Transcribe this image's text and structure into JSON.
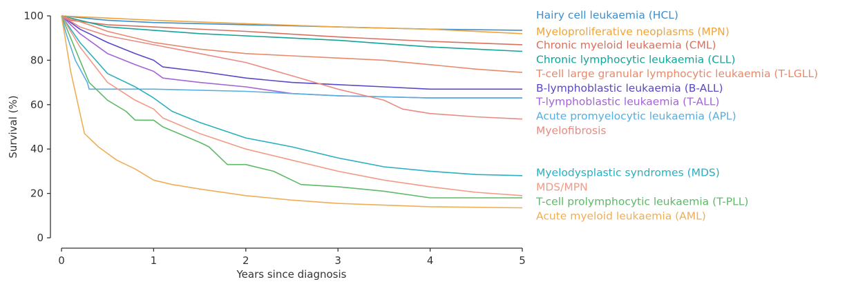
{
  "chart_data": {
    "type": "line",
    "xlabel": "Years since diagnosis",
    "ylabel": "Survival (%)",
    "xlim": [
      0,
      5
    ],
    "ylim": [
      0,
      100
    ],
    "x_ticks": [
      "0",
      "1",
      "2",
      "3",
      "4",
      "5"
    ],
    "y_ticks": [
      "0",
      "20",
      "40",
      "60",
      "80",
      "100"
    ],
    "grid": false,
    "legend_position": "right",
    "series": [
      {
        "name": "Hairy cell leukaemia (HCL)",
        "color": "#3b8fd0",
        "legend_y": 100.5,
        "x": [
          0,
          0.5,
          1,
          2,
          3,
          4,
          5
        ],
        "y": [
          100,
          98,
          97,
          96,
          95,
          94,
          93.5
        ]
      },
      {
        "name": "Myeloproliferative neoplasms (MPN)",
        "color": "#f0a43a",
        "legend_y": 93,
        "x": [
          0,
          0.5,
          1,
          2,
          3,
          4,
          5
        ],
        "y": [
          100,
          99,
          98,
          96.5,
          95,
          94,
          92
        ]
      },
      {
        "name": "Chronic myeloid leukaemia (CML)",
        "color": "#d9705e",
        "legend_y": 87,
        "x": [
          0,
          0.1,
          0.5,
          1,
          2,
          3,
          4,
          5
        ],
        "y": [
          100,
          98,
          96,
          95,
          93,
          90.5,
          88.5,
          87
        ]
      },
      {
        "name": "Chronic lymphocytic leukaemia (CLL)",
        "color": "#14a39a",
        "legend_y": 80.5,
        "x": [
          0,
          0.3,
          0.5,
          1,
          1.5,
          2,
          2.5,
          3,
          3.5,
          4,
          4.5,
          5
        ],
        "y": [
          100,
          97,
          95,
          93.5,
          92,
          91,
          90,
          89,
          87.5,
          86,
          85,
          84
        ]
      },
      {
        "name": "T-cell large granular lymphocytic leukaemia (T-LGLL)",
        "color": "#e8896a",
        "legend_y": 74,
        "x": [
          0,
          0.3,
          0.5,
          1,
          1.5,
          2,
          2.5,
          3,
          3.5,
          4,
          4.5,
          5
        ],
        "y": [
          100,
          96,
          93,
          88,
          85,
          83,
          82,
          81,
          80,
          78,
          76,
          74.5
        ]
      },
      {
        "name": "B-lymphoblastic leukaemia (B-ALL)",
        "color": "#5a47c8",
        "legend_y": 67.5,
        "x": [
          0,
          0.2,
          0.5,
          0.8,
          1,
          1.1,
          1.5,
          2,
          2.5,
          3,
          3.5,
          4,
          4.5,
          5
        ],
        "y": [
          100,
          94,
          88,
          83,
          80,
          77,
          75,
          72,
          70,
          69,
          68,
          67,
          67,
          67
        ]
      },
      {
        "name": "T-lymphoblastic leukaemia (T-ALL)",
        "color": "#a463d6",
        "legend_y": 61.5,
        "x": [
          0,
          0.2,
          0.5,
          0.8,
          1,
          1.1,
          1.5,
          2,
          2.5,
          3,
          3.5,
          4,
          4.5,
          5
        ],
        "y": [
          100,
          92,
          83,
          78,
          75,
          72,
          70,
          68,
          65,
          64,
          63.5,
          63,
          63,
          63
        ]
      },
      {
        "name": "Acute promyelocytic leukaemia (APL)",
        "color": "#56aee0",
        "legend_y": 55,
        "x": [
          0,
          0.05,
          0.15,
          0.28,
          0.3,
          1,
          2,
          3,
          4,
          5
        ],
        "y": [
          100,
          92,
          80,
          70,
          67,
          67,
          66,
          64,
          63,
          63
        ]
      },
      {
        "name": "Myelofibrosis",
        "color": "#ea8a82",
        "legend_y": 48.5,
        "x": [
          0,
          0.2,
          0.5,
          1,
          1.5,
          2,
          2.5,
          3,
          3.5,
          3.7,
          4,
          4.5,
          5
        ],
        "y": [
          100,
          95,
          91,
          87,
          83,
          79,
          73,
          67,
          62,
          58,
          56,
          54.5,
          53.5
        ]
      },
      {
        "name": "Myelodysplastic syndromes (MDS)",
        "color": "#29afc0",
        "legend_y": 29.5,
        "x": [
          0,
          0.2,
          0.5,
          0.8,
          1,
          1.2,
          1.5,
          2,
          2.5,
          3,
          3.5,
          4,
          4.5,
          5
        ],
        "y": [
          100,
          88,
          74,
          68,
          63,
          57,
          52,
          45,
          41,
          36,
          32,
          30,
          28.5,
          28
        ]
      },
      {
        "name": "MDS/MPN",
        "color": "#f19a85",
        "legend_y": 23,
        "x": [
          0,
          0.2,
          0.5,
          0.8,
          1,
          1.1,
          1.5,
          2,
          2.5,
          3,
          3.5,
          4,
          4.5,
          5
        ],
        "y": [
          100,
          86,
          70,
          62,
          58,
          54,
          47,
          40,
          35,
          30,
          26,
          23,
          20.5,
          19
        ]
      },
      {
        "name": "T-cell prolymphocytic leukaemia (T-PLL)",
        "color": "#5fb868",
        "legend_y": 16.5,
        "x": [
          0,
          0.15,
          0.3,
          0.5,
          0.7,
          0.8,
          1,
          1.1,
          1.5,
          1.6,
          1.8,
          2,
          2.3,
          2.6,
          3,
          3.5,
          4,
          4.5,
          5
        ],
        "y": [
          100,
          85,
          70,
          62,
          57,
          53,
          53,
          50,
          43,
          41,
          33,
          33,
          30,
          24,
          23,
          21,
          18,
          18,
          18
        ]
      },
      {
        "name": "Acute myeloid leukaemia (AML)",
        "color": "#efae55",
        "legend_y": 10,
        "x": [
          0,
          0.1,
          0.25,
          0.4,
          0.6,
          0.8,
          1,
          1.2,
          1.5,
          2,
          2.5,
          3,
          4,
          5
        ],
        "y": [
          100,
          75,
          47,
          41,
          35,
          31,
          26,
          24,
          22,
          19,
          17,
          15.5,
          14,
          13.5
        ]
      }
    ]
  }
}
